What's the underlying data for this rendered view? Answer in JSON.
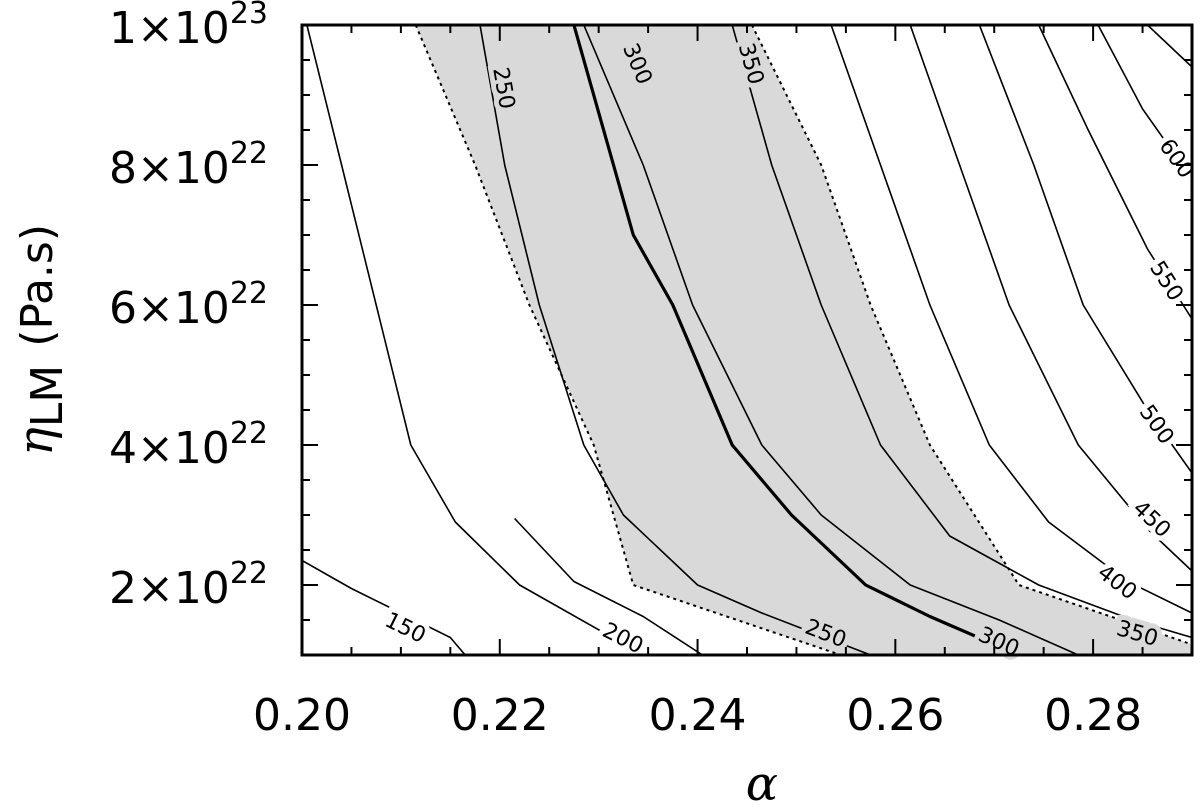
{
  "chart_data": {
    "type": "contour",
    "xlabel": "α",
    "ylabel": {
      "symbol": "η",
      "subscript": "LM",
      "unit": "(Pa.s)"
    },
    "xlim": [
      0.2,
      0.29
    ],
    "ylim": [
      1e+22,
      1e+23
    ],
    "x_ticks": [
      {
        "value": 0.2,
        "label": "0.20"
      },
      {
        "value": 0.22,
        "label": "0.22"
      },
      {
        "value": 0.24,
        "label": "0.24"
      },
      {
        "value": 0.26,
        "label": "0.26"
      },
      {
        "value": 0.28,
        "label": "0.28"
      }
    ],
    "y_ticks": [
      {
        "value": 2e+22,
        "mantissa": "2×10",
        "exponent": "22"
      },
      {
        "value": 4e+22,
        "mantissa": "4×10",
        "exponent": "22"
      },
      {
        "value": 6e+22,
        "mantissa": "6×10",
        "exponent": "22"
      },
      {
        "value": 8e+22,
        "mantissa": "8×10",
        "exponent": "22"
      },
      {
        "value": 1e+23,
        "mantissa": "1×10",
        "exponent": "23"
      }
    ],
    "shaded_band": {
      "color": "#d9d9d9",
      "edge_style": "dotted",
      "left_edge": [
        [
          0.2115,
          1e+23
        ],
        [
          0.2175,
          8e+22
        ],
        [
          0.223,
          6e+22
        ],
        [
          0.2295,
          4e+22
        ],
        [
          0.2335,
          2e+22
        ],
        [
          0.2545,
          1e+22
        ]
      ],
      "right_edge": [
        [
          0.2455,
          1e+23
        ],
        [
          0.2525,
          8e+22
        ],
        [
          0.2575,
          6e+22
        ],
        [
          0.2635,
          4e+22
        ],
        [
          0.2725,
          2e+22
        ],
        [
          0.29,
          1.15e+22
        ]
      ]
    },
    "contours": [
      {
        "level": "150",
        "width": 1.6,
        "points": [
          [
            0.2,
            2.35e+22
          ],
          [
            0.205,
            1.95e+22
          ],
          [
            0.21,
            1.6e+22
          ],
          [
            0.215,
            1.25e+22
          ],
          [
            0.2165,
            1e+22
          ]
        ],
        "label": [
          0.2105,
          1.4e+22
        ]
      },
      {
        "level": "",
        "width": 1.6,
        "points": [
          [
            0.2005,
            1e+23
          ],
          [
            0.204,
            8e+22
          ],
          [
            0.2075,
            6e+22
          ],
          [
            0.211,
            4e+22
          ],
          [
            0.2155,
            2.9e+22
          ],
          [
            0.222,
            2e+22
          ],
          [
            0.2345,
            1e+22
          ]
        ]
      },
      {
        "level": "200",
        "width": 1.6,
        "points": [
          [
            0.2215,
            2.95e+22
          ],
          [
            0.2275,
            2.05e+22
          ],
          [
            0.2345,
            1.55e+22
          ],
          [
            0.2405,
            1e+22
          ]
        ],
        "label": [
          0.2325,
          1.25e+22
        ]
      },
      {
        "level": "250",
        "width": 1.6,
        "points": [
          [
            0.218,
            1e+23
          ],
          [
            0.2205,
            8e+22
          ],
          [
            0.224,
            6e+22
          ],
          [
            0.2285,
            4e+22
          ],
          [
            0.2325,
            3e+22
          ],
          [
            0.24,
            2e+22
          ],
          [
            0.2465,
            1.6e+22
          ],
          [
            0.2575,
            1e+22
          ]
        ],
        "label": [
          0.2205,
          9.1e+22
        ],
        "label2": [
          0.253,
          1.32e+22
        ]
      },
      {
        "level": "",
        "width": 3.2,
        "points": [
          [
            0.2275,
            1e+23
          ],
          [
            0.2335,
            7e+22
          ],
          [
            0.2375,
            6e+22
          ],
          [
            0.2435,
            4e+22
          ],
          [
            0.2495,
            3e+22
          ],
          [
            0.257,
            2e+22
          ],
          [
            0.2635,
            1.55e+22
          ],
          [
            0.2725,
            1e+22
          ]
        ]
      },
      {
        "level": "300",
        "width": 1.6,
        "points": [
          [
            0.2285,
            1e+23
          ],
          [
            0.2345,
            8e+22
          ],
          [
            0.2395,
            6e+22
          ],
          [
            0.2465,
            4e+22
          ],
          [
            0.2525,
            3e+22
          ],
          [
            0.2615,
            2e+22
          ],
          [
            0.2705,
            1.5e+22
          ],
          [
            0.2785,
            1e+22
          ]
        ],
        "label": [
          0.234,
          9.45e+22
        ],
        "label2": [
          0.2705,
          1.2e+22
        ]
      },
      {
        "level": "350",
        "width": 1.6,
        "points": [
          [
            0.2435,
            1e+23
          ],
          [
            0.2475,
            8e+22
          ],
          [
            0.2525,
            6e+22
          ],
          [
            0.2585,
            4e+22
          ],
          [
            0.2655,
            2.7e+22
          ],
          [
            0.2745,
            2e+22
          ],
          [
            0.284,
            1.5e+22
          ],
          [
            0.29,
            1.25e+22
          ]
        ],
        "label": [
          0.2455,
          9.45e+22
        ],
        "label2": [
          0.2845,
          1.32e+22
        ]
      },
      {
        "level": "400",
        "width": 1.6,
        "points": [
          [
            0.2535,
            1e+23
          ],
          [
            0.2585,
            8e+22
          ],
          [
            0.2635,
            6e+22
          ],
          [
            0.2695,
            4e+22
          ],
          [
            0.2755,
            2.9e+22
          ],
          [
            0.2835,
            2.05e+22
          ],
          [
            0.29,
            1.6e+22
          ]
        ],
        "label": [
          0.2825,
          2.05e+22
        ]
      },
      {
        "level": "450",
        "width": 1.6,
        "points": [
          [
            0.2615,
            1e+23
          ],
          [
            0.2665,
            8e+22
          ],
          [
            0.2715,
            6e+22
          ],
          [
            0.2785,
            4e+22
          ],
          [
            0.2855,
            2.8e+22
          ],
          [
            0.29,
            2.2e+22
          ]
        ],
        "label": [
          0.286,
          2.95e+22
        ]
      },
      {
        "level": "500",
        "width": 1.6,
        "points": [
          [
            0.2685,
            1e+23
          ],
          [
            0.274,
            8e+22
          ],
          [
            0.279,
            6e+22
          ],
          [
            0.2855,
            4.5e+22
          ],
          [
            0.29,
            3.6e+22
          ]
        ],
        "label": [
          0.2865,
          4.3e+22
        ]
      },
      {
        "level": "550",
        "width": 1.6,
        "points": [
          [
            0.2745,
            1e+23
          ],
          [
            0.2795,
            8.5e+22
          ],
          [
            0.2855,
            6.8e+22
          ],
          [
            0.29,
            5.8e+22
          ]
        ],
        "label": [
          0.2875,
          6.35e+22
        ]
      },
      {
        "level": "600",
        "width": 1.6,
        "points": [
          [
            0.2805,
            1e+23
          ],
          [
            0.285,
            8.8e+22
          ],
          [
            0.29,
            7.8e+22
          ]
        ],
        "label": [
          0.2885,
          8.1e+22
        ]
      },
      {
        "level": "",
        "width": 1.6,
        "points": [
          [
            0.2855,
            1e+23
          ],
          [
            0.29,
            9.4e+22
          ]
        ]
      }
    ]
  }
}
